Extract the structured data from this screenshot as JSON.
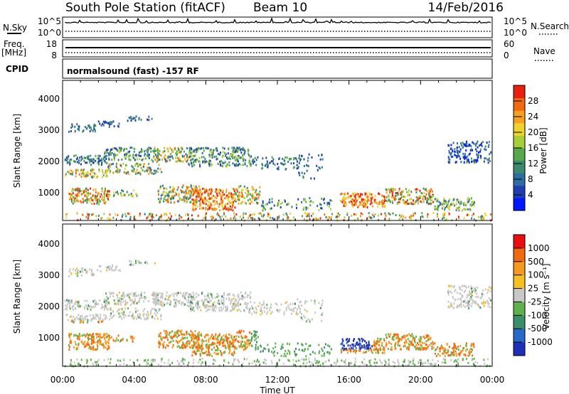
{
  "header": {
    "station": "South Pole Station (fitACF)",
    "beam": "Beam 10",
    "date": "14/Feb/2016"
  },
  "summary_panels": {
    "nsky_label": "N.Sky",
    "nsky_ticks": [
      "10^5",
      "10^0"
    ],
    "nsearch_label": "N.Search",
    "freq_label": "Freq.",
    "freq_unit": "[MHz]",
    "freq_ticks": [
      "18",
      "8"
    ],
    "nave_ticks": [
      "60",
      "0"
    ],
    "nave_label": "Nave",
    "cpid_label": "CPID",
    "cpid_text": "normalsound (fast) -157 RF"
  },
  "colors": {
    "power_scale": [
      "#0018ff",
      "#1f3fb0",
      "#2e6da3",
      "#3c8a6c",
      "#56a84a",
      "#a8cf3a",
      "#f0d22a",
      "#f5a020",
      "#f06a10",
      "#e82010"
    ],
    "velocity_scale": [
      "#1e2fb8",
      "#2868c8",
      "#3a8f6a",
      "#5fb24a",
      "#c8c8c8",
      "#f5c020",
      "#f59a20",
      "#f06a10",
      "#e81010"
    ]
  },
  "chart_data": [
    {
      "type": "heatmap",
      "panel": "power",
      "ylabel": "Slant Range [km]",
      "yticks": [
        "1000",
        "2000",
        "3000",
        "4000"
      ],
      "ylim": [
        150,
        4600
      ],
      "xlim": [
        "00:00",
        "24:00"
      ],
      "colorbar_label": "Power [dB]",
      "colorbar_ticks": [
        "4",
        "8",
        "12",
        "16",
        "20",
        "24",
        "28"
      ],
      "colorbar_range": [
        0,
        32
      ]
    },
    {
      "type": "heatmap",
      "panel": "velocity",
      "ylabel": "Slant Range [km]",
      "yticks": [
        "1000",
        "2000",
        "3000",
        "4000"
      ],
      "ylim": [
        150,
        4600
      ],
      "xlabel": "Time UT",
      "xticks": [
        "00:00",
        "04:00",
        "08:00",
        "12:00",
        "16:00",
        "20:00",
        "00:00"
      ],
      "colorbar_label": "Velocity [m s⁻¹]",
      "colorbar_ticks": [
        "1000",
        "500",
        "100",
        "25",
        "-25",
        "-100",
        "-500",
        "-1000"
      ]
    }
  ]
}
